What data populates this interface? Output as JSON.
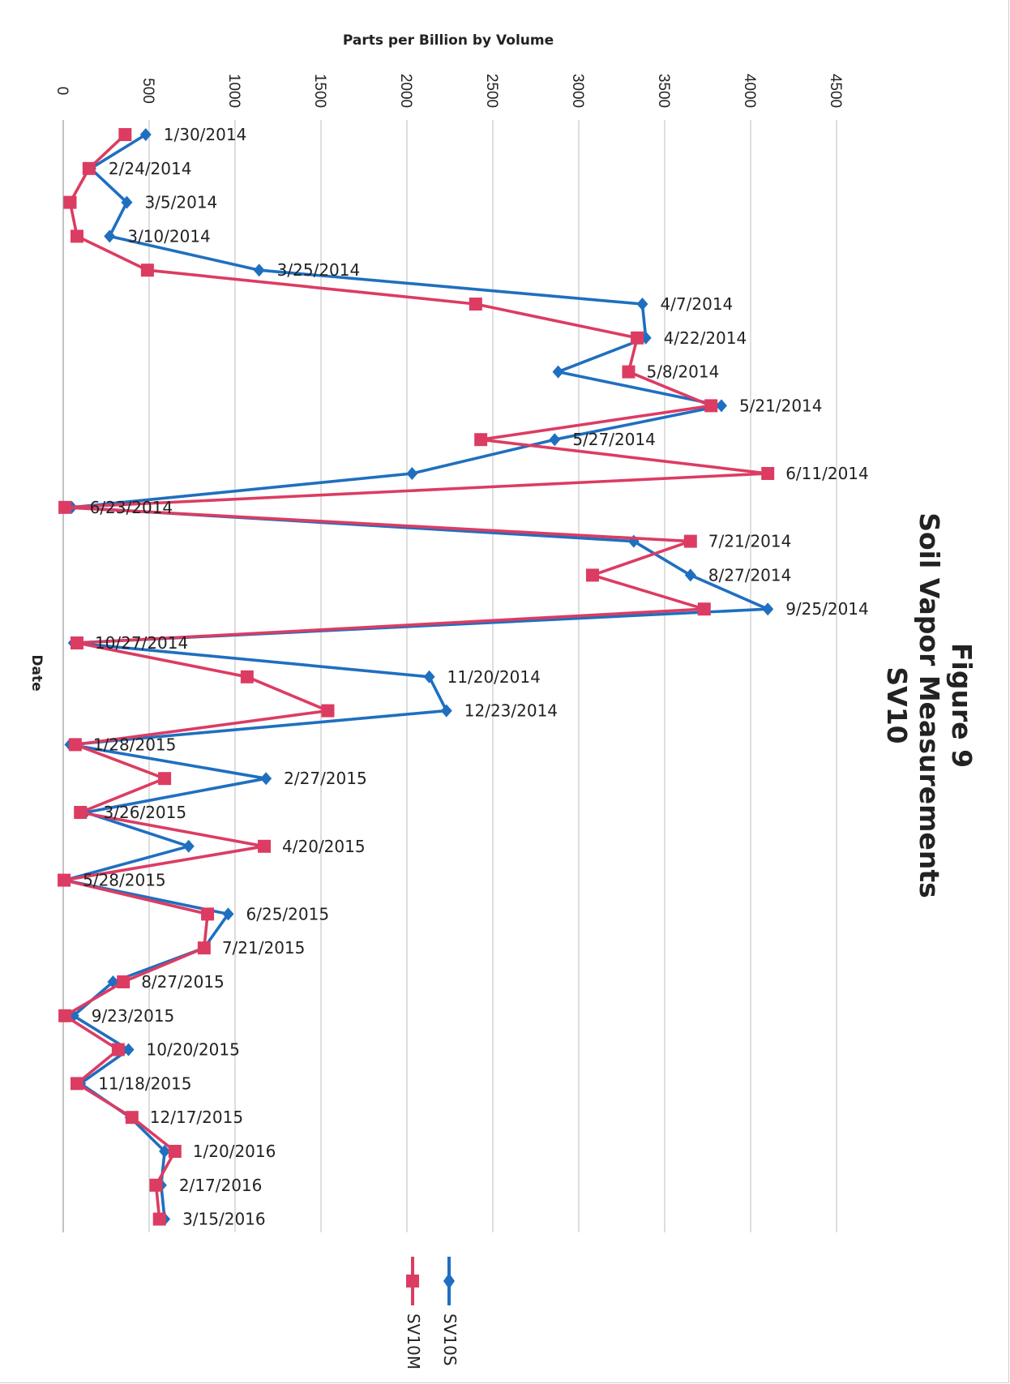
{
  "chart_data": {
    "type": "line",
    "orientation": "rotated 90 degrees clockwise (value axis along top, dates running down)",
    "title_lines": [
      "Figure 9",
      "Soil Vapor Measurements",
      "SV10"
    ],
    "ylabel": "Parts per Billion by Volume",
    "xlabel": "Date",
    "ylim": [
      0,
      4500
    ],
    "yticks": [
      "0",
      "500",
      "1000",
      "1500",
      "2000",
      "2500",
      "3000",
      "3500",
      "4000",
      "4500"
    ],
    "grid": true,
    "legend_position": "bottom",
    "x": [
      "1/30/2014",
      "2/24/2014",
      "3/5/2014",
      "3/10/2014",
      "3/25/2014",
      "4/7/2014",
      "4/22/2014",
      "5/8/2014",
      "5/21/2014",
      "5/27/2014",
      "6/11/2014",
      "6/23/2014",
      "7/21/2014",
      "8/27/2014",
      "9/25/2014",
      "10/27/2014",
      "11/20/2014",
      "12/23/2014",
      "1/28/2015",
      "2/27/2015",
      "3/26/2015",
      "4/20/2015",
      "5/28/2015",
      "6/25/2015",
      "7/21/2015",
      "8/27/2015",
      "9/23/2015",
      "10/20/2015",
      "11/18/2015",
      "12/17/2015",
      "1/20/2016",
      "2/17/2016",
      "3/15/2016"
    ],
    "series": [
      {
        "name": "SV10S",
        "color": "#1f6fc0",
        "marker": "diamond",
        "values": [
          480,
          160,
          370,
          270,
          1140,
          3370,
          3390,
          2880,
          3830,
          2860,
          2030,
          50,
          3320,
          3650,
          4100,
          60,
          2130,
          2230,
          40,
          1180,
          130,
          730,
          10,
          960,
          820,
          290,
          60,
          380,
          100,
          390,
          590,
          570,
          590
        ]
      },
      {
        "name": "SV10M",
        "color": "#dc3c62",
        "marker": "square",
        "values": [
          360,
          150,
          40,
          80,
          490,
          2400,
          3340,
          3290,
          3770,
          2430,
          4100,
          10,
          3650,
          3080,
          3730,
          80,
          1070,
          1540,
          70,
          590,
          100,
          1170,
          5,
          840,
          820,
          350,
          10,
          320,
          80,
          400,
          650,
          540,
          560
        ]
      }
    ]
  }
}
